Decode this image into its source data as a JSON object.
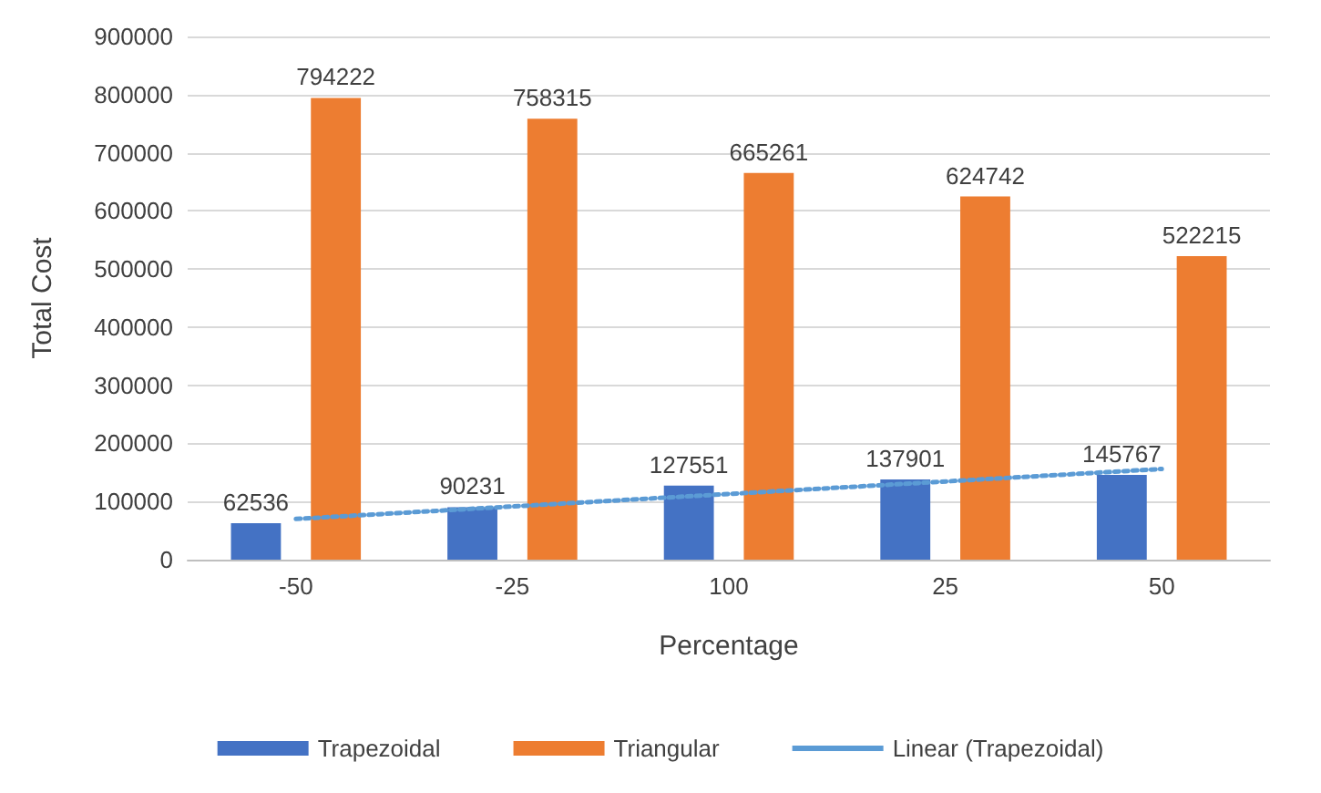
{
  "chart_data": {
    "type": "bar",
    "xlabel": "Percentage",
    "ylabel": "Total Cost",
    "categories": [
      "-50",
      "-25",
      "100",
      "25",
      "50"
    ],
    "series": [
      {
        "name": "Trapezoidal",
        "color": "#4472c4",
        "values": [
          62536,
          90231,
          127551,
          137901,
          145767
        ],
        "value_labels": [
          "62536",
          "90231",
          "127551",
          "137901",
          "145767"
        ]
      },
      {
        "name": "Triangular",
        "color": "#ed7d31",
        "values": [
          794222,
          758315,
          665261,
          624742,
          522215
        ],
        "value_labels": [
          "794222",
          "758315",
          "665261",
          "624742",
          "522215"
        ]
      },
      {
        "name": "Linear (Trapezoidal)",
        "type": "line",
        "color": "#5b9bd5",
        "line_style": "dotted",
        "x": [
          "-50",
          "50"
        ],
        "values": [
          70000,
          156000
        ]
      }
    ],
    "ylim": [
      0,
      900000
    ],
    "yticks": [
      0,
      100000,
      200000,
      300000,
      400000,
      500000,
      600000,
      700000,
      800000,
      900000
    ],
    "grid": "y",
    "legend": "bottom"
  }
}
